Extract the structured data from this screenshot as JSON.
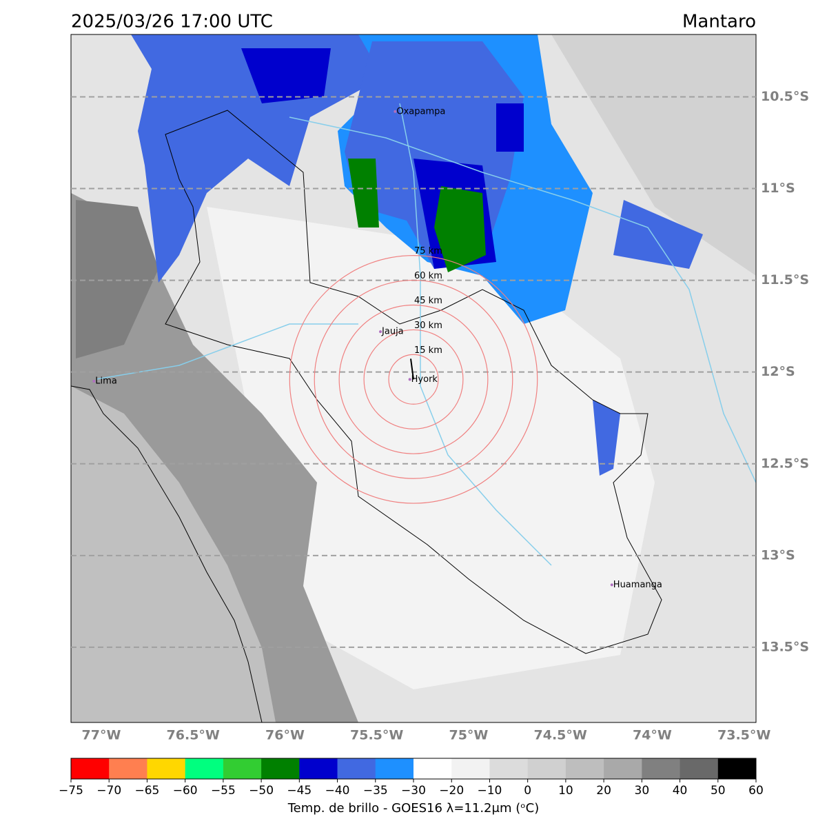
{
  "map": {
    "title": "2025/03/26 17:00 UTC",
    "region": "Mantaro",
    "lon_range": [
      -77.165,
      -73.435
    ],
    "lat_range": [
      -10.16,
      -13.91
    ],
    "lat_ticks": [
      {
        "value": -10.5,
        "label": "10.5°S"
      },
      {
        "value": -11,
        "label": "11°S"
      },
      {
        "value": -11.5,
        "label": "11.5°S"
      },
      {
        "value": -12,
        "label": "12°S"
      },
      {
        "value": -12.5,
        "label": "12.5°S"
      },
      {
        "value": -13,
        "label": "13°S"
      },
      {
        "value": -13.5,
        "label": "13.5°S"
      }
    ],
    "lon_ticks": [
      {
        "value": -77,
        "label": "77°W"
      },
      {
        "value": -76.5,
        "label": "76.5°W"
      },
      {
        "value": -76,
        "label": "76°W"
      },
      {
        "value": -75.5,
        "label": "75.5°W"
      },
      {
        "value": -75,
        "label": "75°W"
      },
      {
        "value": -74.5,
        "label": "74.5°W"
      },
      {
        "value": -74,
        "label": "74°W"
      },
      {
        "value": -73.5,
        "label": "73.5°W"
      }
    ],
    "grid": true,
    "cities": [
      {
        "name": "Oxapampa",
        "lon": -75.4,
        "lat": -10.58
      },
      {
        "name": "Jauja",
        "lon": -75.48,
        "lat": -11.78
      },
      {
        "name": "Hyork",
        "lon": -75.32,
        "lat": -12.04
      },
      {
        "name": "Lima",
        "lon": -77.04,
        "lat": -12.05
      },
      {
        "name": "Huamanga",
        "lon": -74.22,
        "lat": -13.16
      }
    ],
    "rings": {
      "center_lon": -75.3,
      "center_lat": -12.04,
      "color": "#f08080",
      "radii_km": [
        {
          "value": 15,
          "label": "15 km"
        },
        {
          "value": 30,
          "label": "30 km"
        },
        {
          "value": 45,
          "label": "45 km"
        },
        {
          "value": 60,
          "label": "60 km"
        },
        {
          "value": 75,
          "label": "75 km"
        }
      ]
    },
    "colorbar": {
      "label": "Temp. de brillo - GOES16 λ=11.2μm (ᵒC)",
      "ticks": [
        {
          "value": -75,
          "label": "−75"
        },
        {
          "value": -70,
          "label": "−70"
        },
        {
          "value": -65,
          "label": "−65"
        },
        {
          "value": -60,
          "label": "−60"
        },
        {
          "value": -55,
          "label": "−55"
        },
        {
          "value": -50,
          "label": "−50"
        },
        {
          "value": -45,
          "label": "−45"
        },
        {
          "value": -40,
          "label": "−40"
        },
        {
          "value": -35,
          "label": "−35"
        },
        {
          "value": -30,
          "label": "−30"
        },
        {
          "value": -20,
          "label": "−20"
        },
        {
          "value": -10,
          "label": "−10"
        },
        0,
        10,
        20,
        30,
        40,
        50,
        60
      ],
      "colors": [
        "#ff0000",
        "#ff7f50",
        "#ffd700",
        "#00ff7f",
        "#32cd32",
        "#008000",
        "#0000cd",
        "#4169e1",
        "#1e90ff",
        "#ffffff",
        "#f2f2f2",
        "#dcdcdc",
        "#d0d0d0",
        "#bebebe",
        "#a9a9a9",
        "#808080",
        "#696969",
        "#000000"
      ]
    }
  }
}
